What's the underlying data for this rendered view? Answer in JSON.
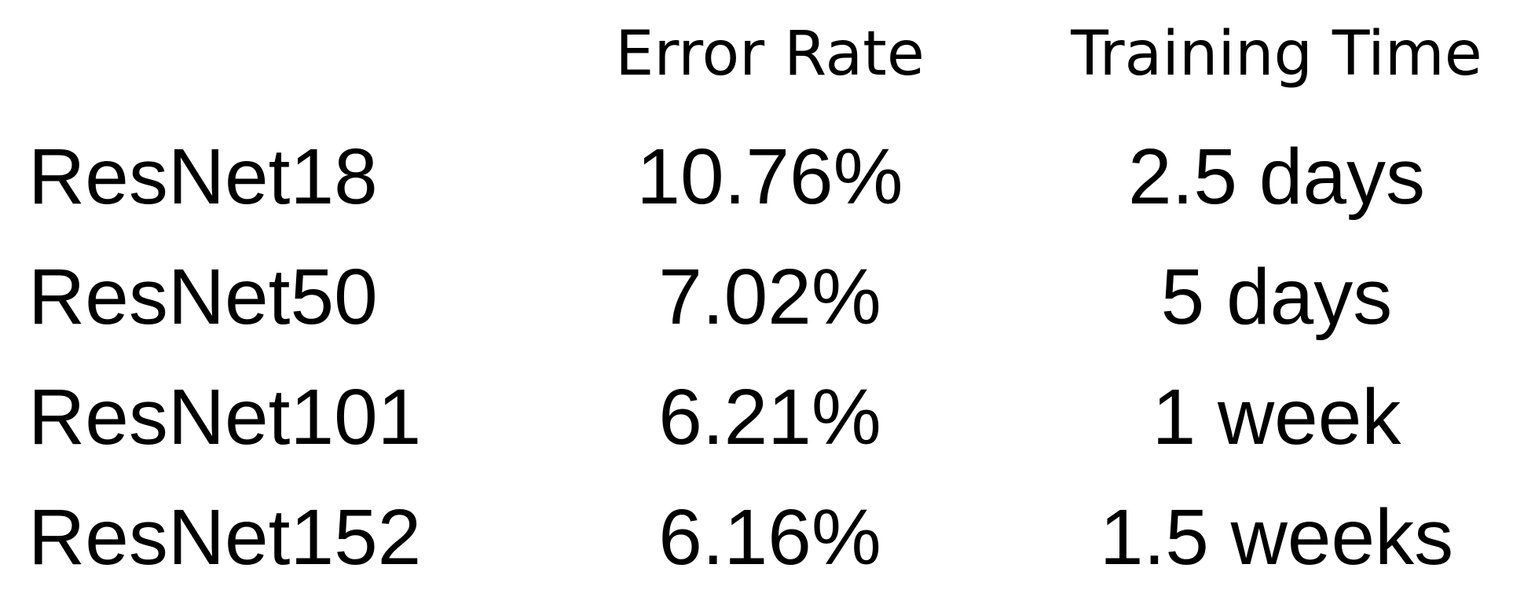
{
  "table": {
    "headers": {
      "model": "",
      "error_rate": "Error Rate",
      "training_time": "Training Time"
    },
    "rows": [
      {
        "model": "ResNet18",
        "error_rate": "10.76%",
        "training_time": "2.5 days"
      },
      {
        "model": "ResNet50",
        "error_rate": "7.02%",
        "training_time": "5 days"
      },
      {
        "model": "ResNet101",
        "error_rate": "6.21%",
        "training_time": "1 week"
      },
      {
        "model": "ResNet152",
        "error_rate": "6.16%",
        "training_time": "1.5 weeks"
      }
    ]
  }
}
